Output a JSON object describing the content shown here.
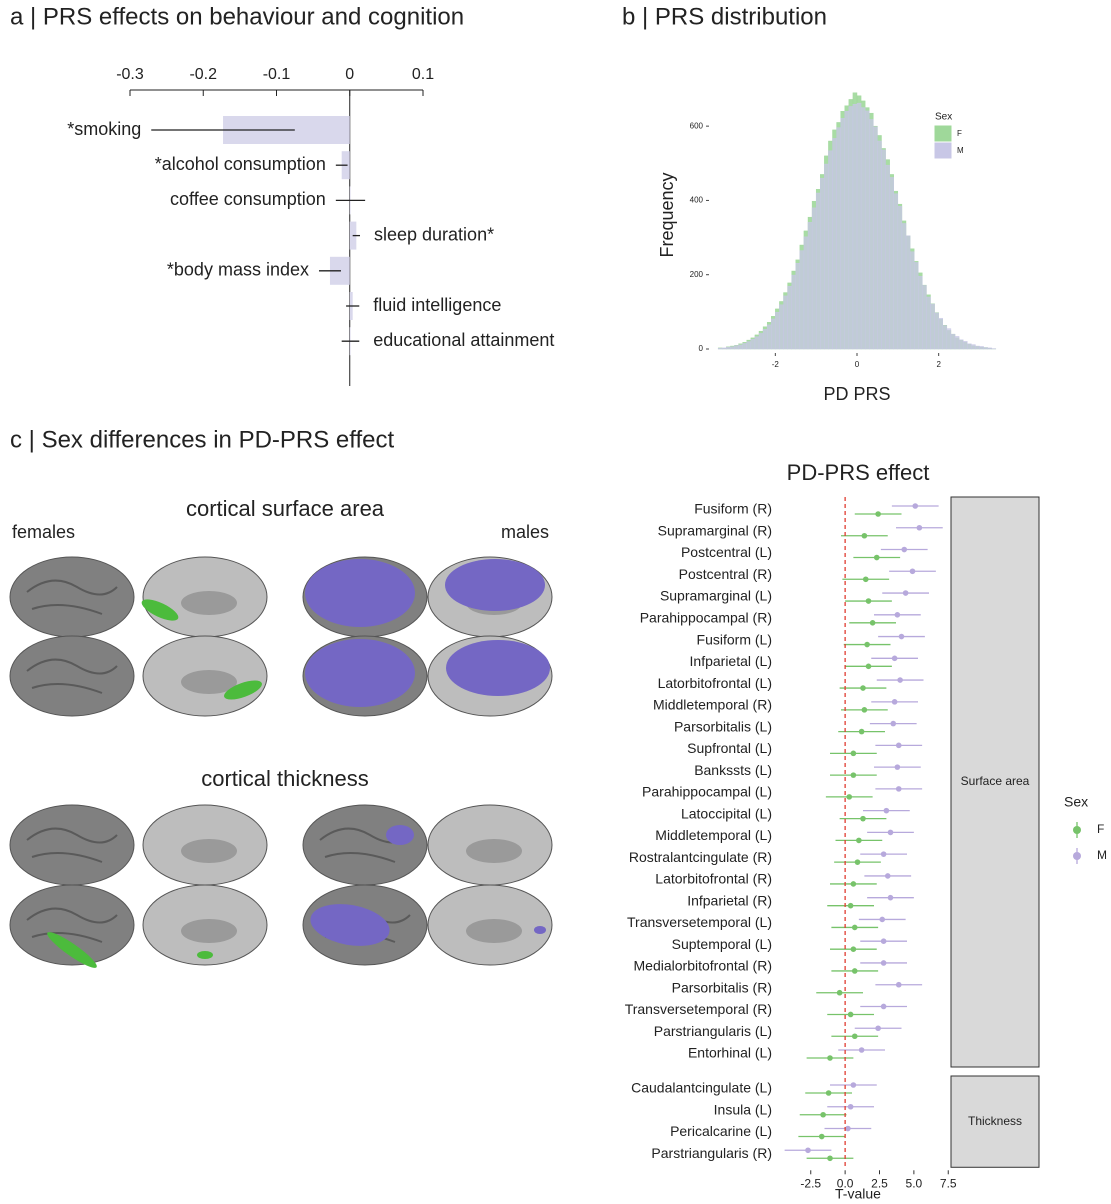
{
  "panel_titles": [
    "a | PRS effects on behaviour and cognition",
    "b | PRS distribution",
    "c | Sex differences in PD-PRS effect"
  ],
  "brain_panel": {
    "sections": [
      "cortical surface area",
      "cortical thickness"
    ],
    "groups": [
      "females",
      "males"
    ]
  },
  "chart_data": [
    {
      "type": "bar",
      "orientation": "horizontal",
      "axis_position": "top",
      "color": "#d9d8ec",
      "categories": [
        "*smoking",
        "*alcohol consumption",
        "coffee consumption",
        "sleep duration*",
        "*body mass index",
        "fluid intelligence",
        "educational attainment"
      ],
      "label_side": [
        "left",
        "left",
        "left",
        "right",
        "left",
        "right",
        "right"
      ],
      "values": [
        -0.173,
        -0.011,
        0.001,
        0.009,
        -0.027,
        0.004,
        0.001
      ],
      "errors": [
        0.098,
        0.008,
        0.02,
        0.005,
        0.015,
        0.009,
        0.012
      ],
      "xlim": [
        -0.3,
        0.1
      ],
      "xticks": [
        -0.3,
        -0.2,
        -0.1,
        0,
        0.1
      ]
    },
    {
      "type": "histogram",
      "xlabel": "PD PRS",
      "ylabel": "Frequency",
      "legend_title": "Sex",
      "legend": "top-right",
      "bins": [
        -3.4,
        -3.3,
        -3.2,
        -3.1,
        -3,
        -2.9,
        -2.8,
        -2.7,
        -2.6,
        -2.5,
        -2.4,
        -2.3,
        -2.2,
        -2.1,
        -2,
        -1.9,
        -1.8,
        -1.7,
        -1.6,
        -1.5,
        -1.4,
        -1.3,
        -1.2,
        -1.1,
        -1,
        -0.9,
        -0.8,
        -0.7,
        -0.6,
        -0.5,
        -0.4,
        -0.3,
        -0.2,
        -0.1,
        0,
        0.1,
        0.2,
        0.3,
        0.4,
        0.5,
        0.6,
        0.7,
        0.8,
        0.9,
        1,
        1.1,
        1.2,
        1.3,
        1.4,
        1.5,
        1.6,
        1.7,
        1.8,
        1.9,
        2,
        2.1,
        2.2,
        2.3,
        2.4,
        2.5,
        2.6,
        2.7,
        2.8,
        2.9,
        3,
        3.1,
        3.2,
        3.3,
        3.4
      ],
      "series": [
        {
          "name": "F",
          "color": "#9fd89a",
          "values": [
            3,
            2,
            6,
            8,
            10,
            14,
            18,
            24,
            30,
            38,
            48,
            60,
            72,
            88,
            108,
            128,
            152,
            178,
            210,
            240,
            280,
            318,
            355,
            398,
            430,
            470,
            520,
            560,
            590,
            610,
            640,
            655,
            672,
            690,
            682,
            668,
            650,
            635,
            600,
            575,
            540,
            510,
            470,
            425,
            390,
            345,
            305,
            270,
            236,
            205,
            172,
            146,
            122,
            98,
            80,
            64,
            50,
            40,
            30,
            24,
            18,
            13,
            9,
            7,
            5,
            4,
            2,
            1
          ]
        },
        {
          "name": "M",
          "color": "#c8c7e6",
          "values": [
            2,
            3,
            5,
            6,
            9,
            11,
            15,
            20,
            26,
            33,
            42,
            53,
            65,
            81,
            99,
            119,
            143,
            169,
            199,
            231,
            265,
            302,
            341,
            380,
            420,
            460,
            498,
            534,
            567,
            596,
            621,
            640,
            653,
            659,
            662,
            650,
            641,
            618,
            598,
            560,
            536,
            495,
            462,
            418,
            384,
            338,
            305,
            262,
            233,
            196,
            171,
            140,
            121,
            97,
            83,
            63,
            55,
            40,
            34,
            25,
            21,
            14,
            12,
            8,
            7,
            4,
            3,
            1
          ]
        }
      ],
      "xlim": [
        -3.6,
        3.6
      ],
      "xticks": [
        -2,
        0,
        2
      ],
      "ylim": [
        0,
        700
      ],
      "yticks": [
        0,
        200,
        400,
        600
      ]
    },
    {
      "type": "forest",
      "title": "PD-PRS effect",
      "xlabel": "T-value",
      "legend_title": "Sex",
      "reference_line": 0,
      "reference_color": "#e03c31",
      "facets": [
        {
          "label": "Surface area",
          "categories": [
            "Fusiform (R)",
            "Supramarginal (R)",
            "Postcentral (L)",
            "Postcentral (R)",
            "Supramarginal (L)",
            "Parahippocampal (R)",
            "Fusiform (L)",
            "Infparietal (L)",
            "Latorbitofrontal (L)",
            "Middletemporal (R)",
            "Parsorbitalis (L)",
            "Supfrontal (L)",
            "Bankssts (L)",
            "Parahippocampal (L)",
            "Latoccipital (L)",
            "Middletemporal (L)",
            "Rostralantcingulate (R)",
            "Latorbitofrontal (R)",
            "Infparietal (R)",
            "Transversetemporal (L)",
            "Suptemporal (L)",
            "Medialorbitofrontal (R)",
            "Parsorbitalis (R)",
            "Transversetemporal (R)",
            "Parstriangularis (L)",
            "Entorhinal (L)"
          ]
        },
        {
          "label": "Thickness",
          "categories": [
            "Caudalantcingulate (L)",
            "Insula (L)",
            "Pericalcarine (L)",
            "Parstriangularis (R)"
          ]
        }
      ],
      "series": [
        {
          "name": "F",
          "color": "#77c36a",
          "values": [
            [
              2.4,
              1.4,
              2.3,
              1.5,
              1.7,
              2.0,
              1.6,
              1.7,
              1.3,
              1.4,
              1.2,
              0.6,
              0.6,
              0.3,
              1.3,
              1.0,
              0.9,
              0.6,
              0.4,
              0.7,
              0.6,
              0.7,
              -0.4,
              0.4,
              0.7,
              -1.1
            ],
            [
              -1.2,
              -1.6,
              -1.7,
              -1.1
            ]
          ],
          "errors": [
            [
              1.7,
              1.7,
              1.7,
              1.7,
              1.7,
              1.7,
              1.7,
              1.7,
              1.7,
              1.7,
              1.7,
              1.7,
              1.7,
              1.7,
              1.7,
              1.7,
              1.7,
              1.7,
              1.7,
              1.7,
              1.7,
              1.7,
              1.7,
              1.7,
              1.7,
              1.7
            ],
            [
              1.7,
              1.7,
              1.7,
              1.7
            ]
          ]
        },
        {
          "name": "M",
          "color": "#b7a9dc",
          "values": [
            [
              5.1,
              5.4,
              4.3,
              4.9,
              4.4,
              3.8,
              4.1,
              3.6,
              4.0,
              3.6,
              3.5,
              3.9,
              3.8,
              3.9,
              3.0,
              3.3,
              2.8,
              3.1,
              3.3,
              2.7,
              2.8,
              2.8,
              3.9,
              2.8,
              2.4,
              1.2
            ],
            [
              0.6,
              0.4,
              0.2,
              -2.7
            ]
          ],
          "errors": [
            [
              1.7,
              1.7,
              1.7,
              1.7,
              1.7,
              1.7,
              1.7,
              1.7,
              1.7,
              1.7,
              1.7,
              1.7,
              1.7,
              1.7,
              1.7,
              1.7,
              1.7,
              1.7,
              1.7,
              1.7,
              1.7,
              1.7,
              1.7,
              1.7,
              1.7,
              1.7
            ],
            [
              1.7,
              1.7,
              1.7,
              1.7
            ]
          ]
        }
      ],
      "xlim": [
        -5.1,
        7.7
      ],
      "xticks": [
        -2.5,
        {
          "value": 0,
          "label": "0.0"
        },
        2.5,
        {
          "value": 5,
          "label": "5.0"
        },
        7.5
      ]
    }
  ]
}
